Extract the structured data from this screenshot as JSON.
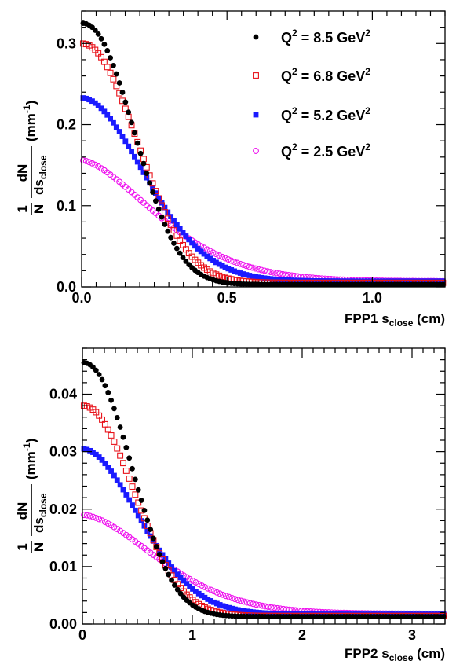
{
  "chart_data": [
    {
      "type": "scatter",
      "xlabel": {
        "pre": "FPP1 s",
        "sub": "close",
        "post": " (cm)"
      },
      "ylabel": {
        "frac_left_top": "1",
        "frac_left_bottom": "N",
        "frac_top": "dN",
        "frac_bottom_main": "ds",
        "frac_bottom_sub": "close",
        "units_pre": "(mm",
        "units_sup": "-1",
        "units_post": ")"
      },
      "xlim": [
        0,
        1.25
      ],
      "ylim": [
        0,
        0.34
      ],
      "xticks": [
        0,
        0.5,
        1.0
      ],
      "xtick_labels": [
        "0.0",
        "0.5",
        "1.0"
      ],
      "yticks": [
        0,
        0.1,
        0.2,
        0.3
      ],
      "ytick_labels": [
        "0.0",
        "0.1",
        "0.2",
        "0.3"
      ],
      "legend_position": "top-right",
      "x_range_points": [
        0,
        1.25
      ],
      "series": [
        {
          "name_pre": "Q",
          "name_sup": "2",
          "name_mid": " = 8.5 GeV",
          "name_sup2": "2",
          "marker": "filled-circle",
          "color": "#000000",
          "peak": 0.325,
          "width": 0.24,
          "tail": 0.003,
          "shape": 2.2,
          "dx": 0.0104,
          "x_points_range": [
            0,
            1.25
          ]
        },
        {
          "name_pre": "Q",
          "name_sup": "2",
          "name_mid": " = 6.8 GeV",
          "name_sup2": "2",
          "marker": "open-square",
          "color": "#e8121a",
          "peak": 0.3,
          "width": 0.26,
          "tail": 0.005,
          "shape": 2.1,
          "dx": 0.0104,
          "x_points_range": [
            0,
            1.25
          ]
        },
        {
          "name_pre": "Q",
          "name_sup": "2",
          "name_mid": " = 5.2 GeV",
          "name_sup2": "2",
          "marker": "filled-square",
          "color": "#1a1aff",
          "peak": 0.233,
          "width": 0.3,
          "tail": 0.007,
          "shape": 1.9,
          "dx": 0.0104,
          "x_points_range": [
            0,
            1.25
          ]
        },
        {
          "name_pre": "Q",
          "name_sup": "2",
          "name_mid": " = 2.5 GeV",
          "name_sup2": "2",
          "marker": "open-circle",
          "color": "#ee12ee",
          "peak": 0.156,
          "width": 0.36,
          "tail": 0.007,
          "shape": 1.6,
          "dx": 0.0104,
          "x_points_range": [
            0,
            1.25
          ]
        }
      ]
    },
    {
      "type": "scatter",
      "xlabel": {
        "pre": "FPP2 s",
        "sub": "close",
        "post": " (cm)"
      },
      "ylabel": {
        "frac_left_top": "1",
        "frac_left_bottom": "N",
        "frac_top": "dN",
        "frac_bottom_main": "ds",
        "frac_bottom_sub": "close",
        "units_pre": "(mm",
        "units_sup": "-1",
        "units_post": ")"
      },
      "xlim": [
        0,
        3.3
      ],
      "ylim": [
        0,
        0.048
      ],
      "xticks": [
        0,
        1,
        2,
        3
      ],
      "xtick_labels": [
        "0",
        "1",
        "2",
        "3"
      ],
      "yticks": [
        0,
        0.01,
        0.02,
        0.03,
        0.04
      ],
      "ytick_labels": [
        "0.00",
        "0.01",
        "0.02",
        "0.03",
        "0.04"
      ],
      "series": [
        {
          "name": "",
          "marker": "filled-circle",
          "color": "#000000",
          "peak": 0.0455,
          "width": 0.6,
          "tail": 0.0013,
          "shape": 2.2,
          "dx": 0.0275
        },
        {
          "name": "",
          "marker": "open-square",
          "color": "#e8121a",
          "peak": 0.038,
          "width": 0.64,
          "tail": 0.0014,
          "shape": 2.1,
          "dx": 0.0275
        },
        {
          "name": "",
          "marker": "filled-square",
          "color": "#1a1aff",
          "peak": 0.0305,
          "width": 0.72,
          "tail": 0.0017,
          "shape": 1.9,
          "dx": 0.0275
        },
        {
          "name": "",
          "marker": "open-circle",
          "color": "#ee12ee",
          "peak": 0.019,
          "width": 0.95,
          "tail": 0.0018,
          "shape": 1.7,
          "dx": 0.0275
        }
      ]
    }
  ]
}
